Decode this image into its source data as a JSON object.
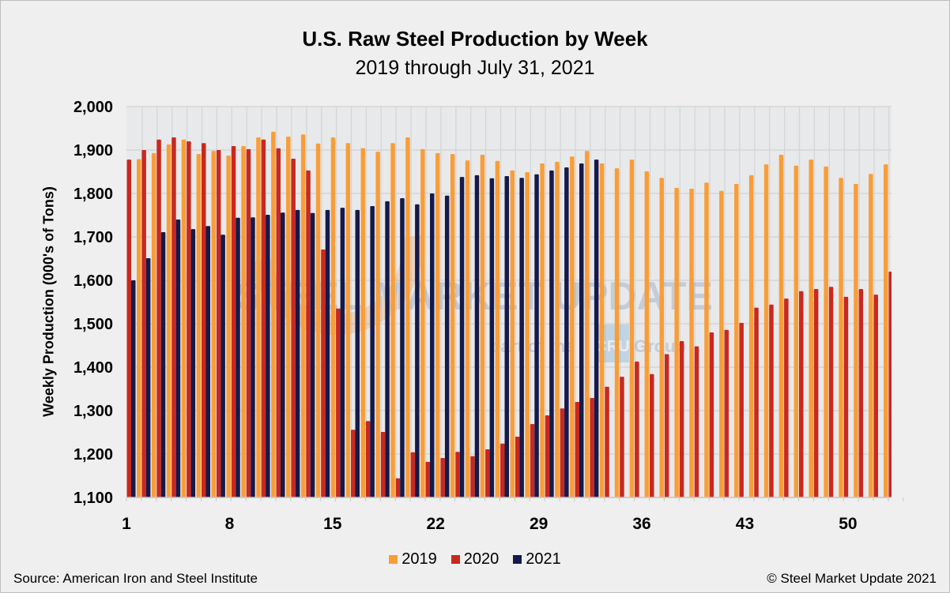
{
  "chart_data": {
    "type": "bar",
    "title": "U.S. Raw Steel Production by Week",
    "subtitle": "2019 through July 31, 2021",
    "xlabel": "",
    "ylabel": "Weekly Production (000's of Tons)",
    "ylim": [
      1100,
      2000
    ],
    "yticks": [
      "1,100",
      "1,200",
      "1,300",
      "1,400",
      "1,500",
      "1,600",
      "1,700",
      "1,800",
      "1,900",
      "2,000"
    ],
    "xticks": [
      "1",
      "8",
      "15",
      "22",
      "29",
      "36",
      "43",
      "50"
    ],
    "xtick_weeks": [
      1,
      8,
      15,
      22,
      29,
      36,
      43,
      50
    ],
    "grid": true,
    "legend_position": "bottom",
    "series": [
      {
        "name": "2019",
        "color": "#f99d38",
        "values": [
          1879,
          1893,
          1913,
          1924,
          1891,
          1898,
          1887,
          1909,
          1929,
          1942,
          1931,
          1936,
          1915,
          1929,
          1916,
          1904,
          1896,
          1916,
          1929,
          1902,
          1893,
          1891,
          1876,
          1889,
          1875,
          1853,
          1849,
          1869,
          1873,
          1885,
          1898,
          1869,
          1858,
          1878,
          1851,
          1836,
          1813,
          1811,
          1825,
          1806,
          1822,
          1842,
          1867,
          1889,
          1864,
          1878,
          1862,
          1836,
          1822,
          1845,
          1867,
          null
        ]
      },
      {
        "name": "2020",
        "color": "#c8291f",
        "values": [
          1878,
          1900,
          1924,
          1929,
          1920,
          1916,
          1900,
          1909,
          1902,
          1924,
          1904,
          1880,
          1853,
          1671,
          1535,
          1256,
          1276,
          1251,
          1144,
          1204,
          1182,
          1191,
          1205,
          1195,
          1211,
          1224,
          1240,
          1269,
          1289,
          1305,
          1320,
          1329,
          1355,
          1378,
          1413,
          1384,
          1430,
          1460,
          1448,
          1480,
          1486,
          1502,
          1537,
          1544,
          1558,
          1575,
          1580,
          1585,
          1562,
          1580,
          1567,
          1620
        ]
      },
      {
        "name": "2021",
        "color": "#151a4a",
        "values": [
          1600,
          1651,
          1711,
          1740,
          1718,
          1725,
          1705,
          1744,
          1745,
          1751,
          1756,
          1762,
          1755,
          1762,
          1767,
          1762,
          1771,
          1782,
          1789,
          1775,
          1800,
          1795,
          1838,
          1842,
          1835,
          1840,
          1836,
          1844,
          1853,
          1860,
          1869,
          1878
        ]
      }
    ]
  },
  "watermark": {
    "line1": "STEEL MARKET UPDATE",
    "line2": "part of the",
    "badge": "CRU",
    "line3": "Group"
  },
  "footer": {
    "source": "Source: American Iron and Steel Institute",
    "copyright": "© Steel Market Update 2021"
  }
}
